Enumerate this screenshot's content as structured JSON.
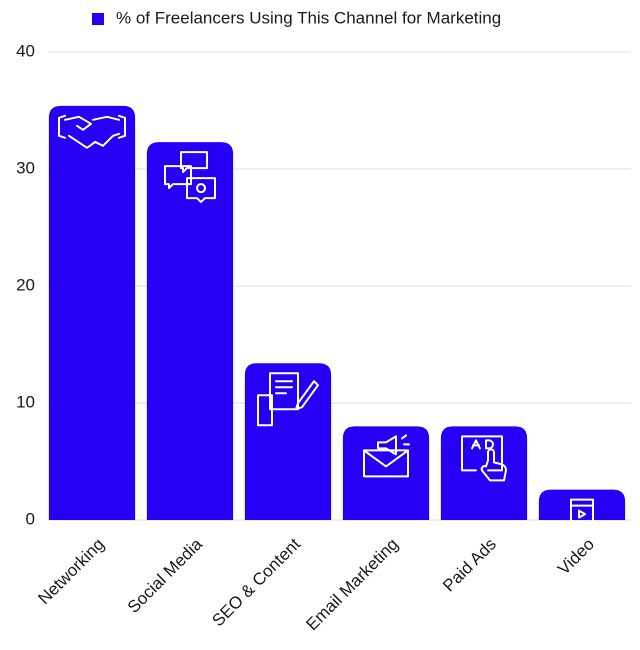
{
  "chart_data": {
    "type": "bar",
    "legend": "% of Freelancers Using This Channel for Marketing",
    "categories": [
      "Networking",
      "Social Media",
      "SEO & Content",
      "Email Marketing",
      "Paid Ads",
      "Video"
    ],
    "values": [
      35.4,
      32.3,
      13.4,
      8.0,
      8.0,
      2.6
    ],
    "color": "#2600f5",
    "ylim": [
      0,
      40
    ],
    "yticks": [
      0,
      10,
      20,
      30,
      40
    ],
    "grid": true
  }
}
